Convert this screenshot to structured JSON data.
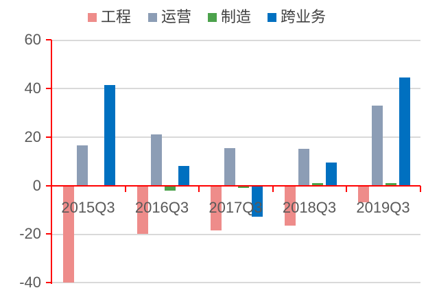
{
  "chart_data": {
    "type": "bar",
    "title": "",
    "xlabel": "",
    "ylabel": "",
    "categories": [
      "2015Q3",
      "2016Q3",
      "2017Q3",
      "2018Q3",
      "2019Q3"
    ],
    "series": [
      {
        "name": "工程",
        "color": "#EE8C8A",
        "values": [
          -40,
          -20,
          -18.5,
          -16.5,
          -7
        ]
      },
      {
        "name": "运营",
        "color": "#8C9DB5",
        "values": [
          16.5,
          21,
          15.5,
          15,
          33
        ]
      },
      {
        "name": "制造",
        "color": "#4CA24C",
        "values": [
          -0.5,
          -2,
          -1,
          1,
          1
        ]
      },
      {
        "name": "跨业务",
        "color": "#0070C0",
        "values": [
          41.5,
          8,
          -13,
          9.5,
          44.5
        ]
      }
    ],
    "ylim": [
      -40,
      60
    ],
    "yticks": [
      60,
      40,
      20,
      0,
      -20,
      -40
    ],
    "grid": true,
    "legend_position": "top",
    "axis_color": "#FF0000",
    "gridline_color": "#D9D9D9",
    "tick_label_color": "#595959",
    "legend_text_color": "#404040",
    "background_color": "#FFFFFF"
  }
}
